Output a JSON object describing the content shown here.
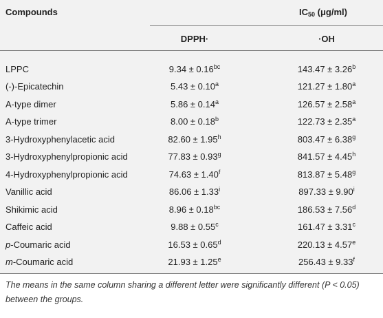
{
  "header": {
    "compounds": "Compounds",
    "ic_main": "IC",
    "ic_sub": "50",
    "ic_unit": " (μg/ml)",
    "col1": "DPPH·",
    "col2": "·OH"
  },
  "table": {
    "rows": [
      {
        "name": "LPPC",
        "dpph": "9.34 ± 0.16",
        "dpph_sup": "bc",
        "oh": "143.47 ± 3.26",
        "oh_sup": "b"
      },
      {
        "name": "(-)-Epicatechin",
        "dpph": "5.43 ± 0.10",
        "dpph_sup": "a",
        "oh": "121.27 ± 1.80",
        "oh_sup": "a"
      },
      {
        "name": "A-type dimer",
        "dpph": "5.86 ± 0.14",
        "dpph_sup": "a",
        "oh": "126.57 ± 2.58",
        "oh_sup": "a"
      },
      {
        "name": "A-type trimer",
        "dpph": "8.00 ± 0.18",
        "dpph_sup": "b",
        "oh": "122.73 ± 2.35",
        "oh_sup": "a"
      },
      {
        "name": "3-Hydroxyphenylacetic acid",
        "dpph": "82.60 ± 1.95",
        "dpph_sup": "h",
        "oh": "803.47 ± 6.38",
        "oh_sup": "g"
      },
      {
        "name": "3-Hydroxyphenylpropionic acid",
        "dpph": "77.83 ± 0.93",
        "dpph_sup": "g",
        "oh": "841.57 ± 4.45",
        "oh_sup": "h"
      },
      {
        "name": "4-Hydroxyphenylpropionic acid",
        "dpph": "74.63 ± 1.40",
        "dpph_sup": "f",
        "oh": "813.87 ± 5.48",
        "oh_sup": "g"
      },
      {
        "name": "Vanillic acid",
        "dpph": "86.06 ± 1.33",
        "dpph_sup": "i",
        "oh": "897.33 ± 9.90",
        "oh_sup": "i"
      },
      {
        "name": "Shikimic acid",
        "dpph": "8.96 ± 0.18",
        "dpph_sup": "bc",
        "oh": "186.53 ± 7.56",
        "oh_sup": "d"
      },
      {
        "name": "Caffeic acid",
        "dpph": "9.88 ± 0.55",
        "dpph_sup": "c",
        "oh": "161.47 ± 3.31",
        "oh_sup": "c"
      },
      {
        "name_italic": "p",
        "name": "-Coumaric acid",
        "dpph": "16.53 ± 0.65",
        "dpph_sup": "d",
        "oh": "220.13 ± 4.57",
        "oh_sup": "e"
      },
      {
        "name_italic": "m",
        "name": "-Coumaric acid",
        "dpph": "21.93 ± 1.25",
        "dpph_sup": "e",
        "oh": "256.43 ± 9.33",
        "oh_sup": "f"
      }
    ]
  },
  "footnote": "The means in the same column sharing a different letter were significantly different (P < 0.05) between the groups."
}
